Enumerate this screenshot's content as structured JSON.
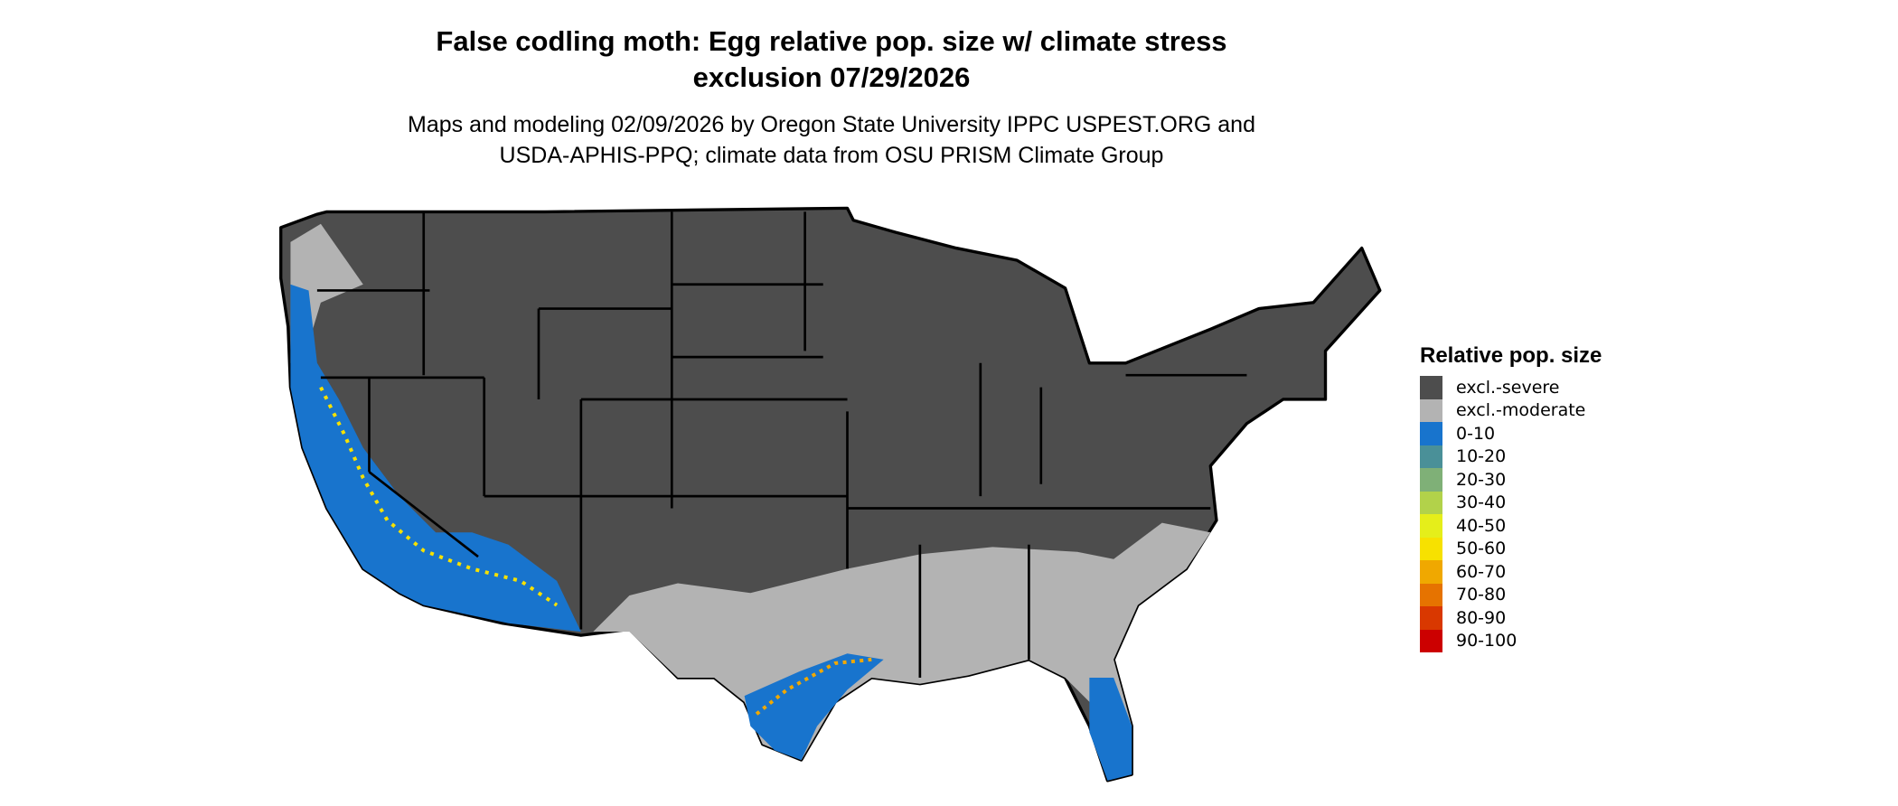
{
  "title_line1": "False codling moth: Egg relative pop. size w/ climate stress",
  "title_line2": "exclusion 07/29/2026",
  "subtitle_line1": "Maps and modeling 02/09/2026 by Oregon State University IPPC USPEST.ORG and",
  "subtitle_line2": "USDA-APHIS-PPQ; climate data from OSU PRISM Climate Group",
  "legend": {
    "title": "Relative pop. size",
    "items": [
      {
        "label": "excl.-severe",
        "color": "#4d4d4d"
      },
      {
        "label": "excl.-moderate",
        "color": "#b3b3b3"
      },
      {
        "label": "0-10",
        "color": "#1874cd"
      },
      {
        "label": "10-20",
        "color": "#4a9098"
      },
      {
        "label": "20-30",
        "color": "#7fb077"
      },
      {
        "label": "30-40",
        "color": "#b2d24a"
      },
      {
        "label": "40-50",
        "color": "#e5ee1a"
      },
      {
        "label": "50-60",
        "color": "#f7e100"
      },
      {
        "label": "60-70",
        "color": "#f0a800"
      },
      {
        "label": "70-80",
        "color": "#e67300"
      },
      {
        "label": "80-90",
        "color": "#d93800"
      },
      {
        "label": "90-100",
        "color": "#cc0000"
      }
    ]
  }
}
